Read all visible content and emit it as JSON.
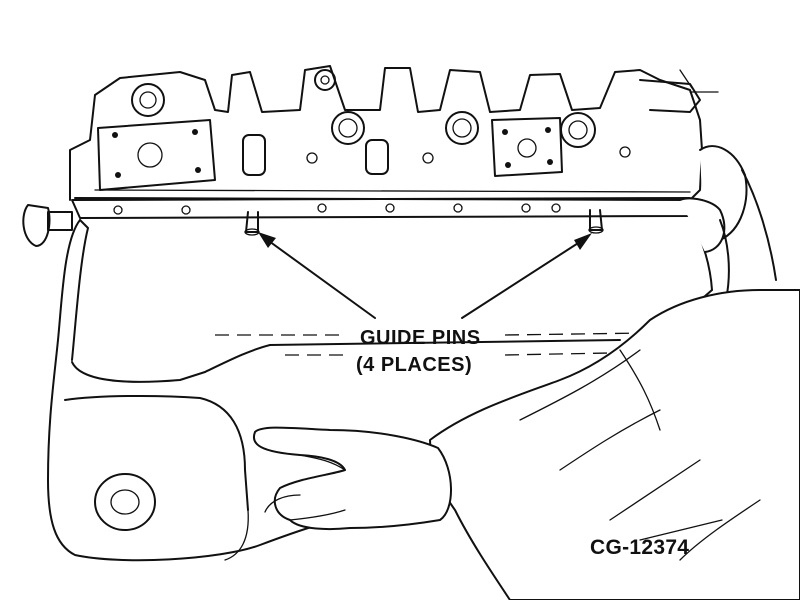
{
  "callout": {
    "line1": "GUIDE PINS",
    "line2": "(4 PLACES)"
  },
  "figure_id": "CG-12374"
}
